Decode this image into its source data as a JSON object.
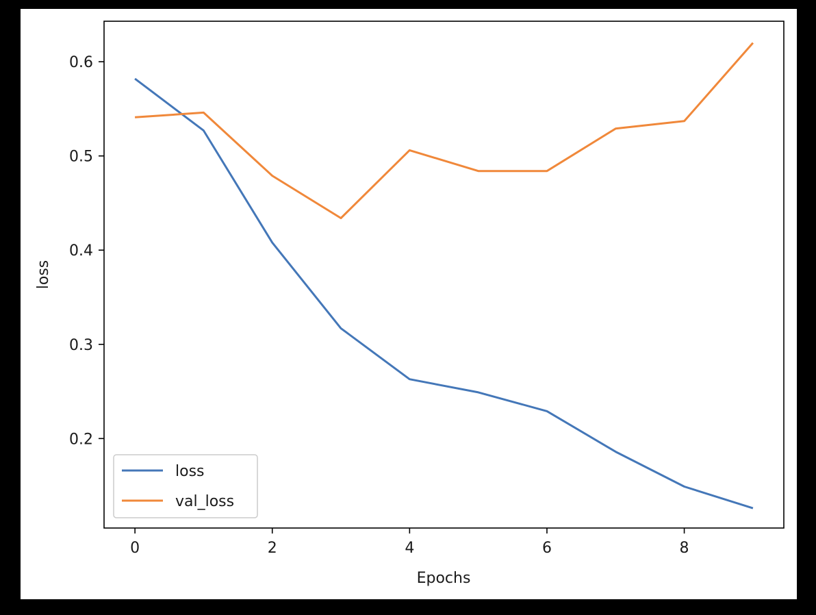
{
  "chart_data": {
    "type": "line",
    "title": "",
    "xlabel": "Epochs",
    "ylabel": "loss",
    "x": [
      0,
      1,
      2,
      3,
      4,
      5,
      6,
      7,
      8,
      9
    ],
    "xticks": [
      0,
      2,
      4,
      6,
      8
    ],
    "yticks": [
      0.2,
      0.3,
      0.4,
      0.5,
      0.6
    ],
    "xlim": [
      -0.45,
      9.45
    ],
    "ylim": [
      0.105,
      0.643
    ],
    "grid": false,
    "legend_position": "lower-left",
    "series": [
      {
        "name": "loss",
        "color": "#4477b8",
        "values": [
          0.582,
          0.527,
          0.408,
          0.317,
          0.263,
          0.249,
          0.229,
          0.186,
          0.149,
          0.126
        ]
      },
      {
        "name": "val_loss",
        "color": "#f0883a",
        "values": [
          0.541,
          0.546,
          0.479,
          0.434,
          0.506,
          0.484,
          0.484,
          0.529,
          0.537,
          0.62
        ]
      }
    ]
  }
}
